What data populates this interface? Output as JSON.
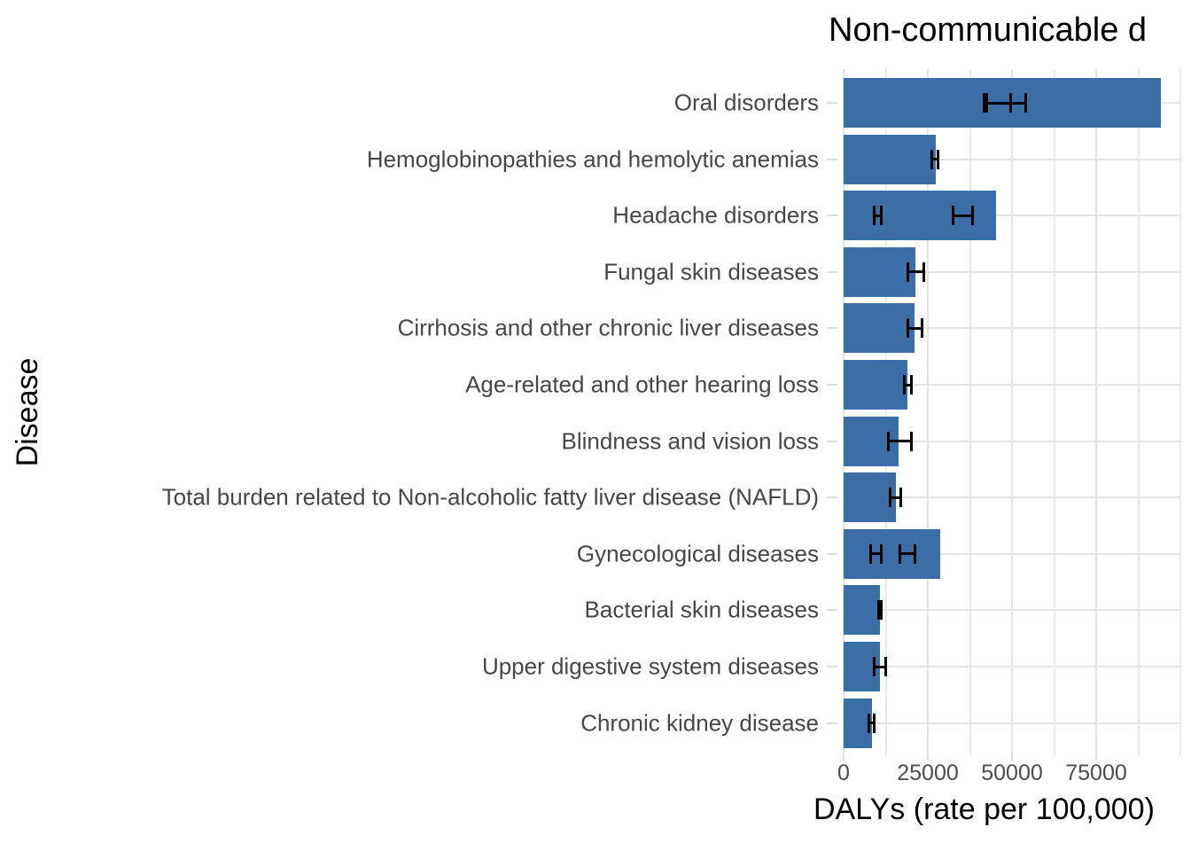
{
  "chart_data": {
    "type": "bar",
    "orientation": "horizontal",
    "title": "Non-communicable d",
    "xlabel": "DALYs (rate per 100,000)",
    "ylabel": "Disease",
    "xlim": [
      0,
      101000
    ],
    "grid": true,
    "x_ticks": [
      0,
      25000,
      50000,
      75000
    ],
    "x_tick_labels": [
      "0",
      "25000",
      "50000",
      "75000"
    ],
    "x_minor_gridlines": [
      12500,
      37500,
      62500,
      87500,
      100000
    ],
    "bar_color": "#3B6DA6",
    "gridline_color": "#e5e5e5",
    "errorbar_color": "#000000",
    "categories": [
      "Oral disorders",
      "Hemoglobinopathies and hemolytic anemias",
      "Headache disorders",
      "Fungal skin diseases",
      "Cirrhosis and other chronic liver diseases",
      "Age-related and other hearing loss",
      "Blindness and vision loss",
      "Total burden related to Non-alcoholic fatty liver disease (NAFLD)",
      "Gynecological diseases",
      "Bacterial skin diseases",
      "Upper digestive system diseases",
      "Chronic kidney disease"
    ],
    "values": [
      94200,
      27400,
      45300,
      21300,
      21100,
      18900,
      16300,
      15500,
      28700,
      10800,
      10800,
      8400
    ],
    "error_bars": [
      [
        [
          41600,
          49700
        ],
        [
          42600,
          54200
        ]
      ],
      [
        [
          26300,
          27900
        ]
      ],
      [
        [
          9200,
          11300
        ],
        [
          32600,
          38200
        ]
      ],
      [
        [
          19000,
          23700
        ]
      ],
      [
        [
          19200,
          23200
        ]
      ],
      [
        [
          17900,
          20000
        ]
      ],
      [
        [
          13200,
          20000
        ]
      ],
      [
        [
          13900,
          17100
        ]
      ],
      [
        [
          7900,
          11300
        ],
        [
          16800,
          21100
        ]
      ],
      [
        [
          10300,
          11100
        ]
      ],
      [
        [
          9200,
          12400
        ]
      ],
      [
        [
          7400,
          9200
        ]
      ]
    ]
  }
}
